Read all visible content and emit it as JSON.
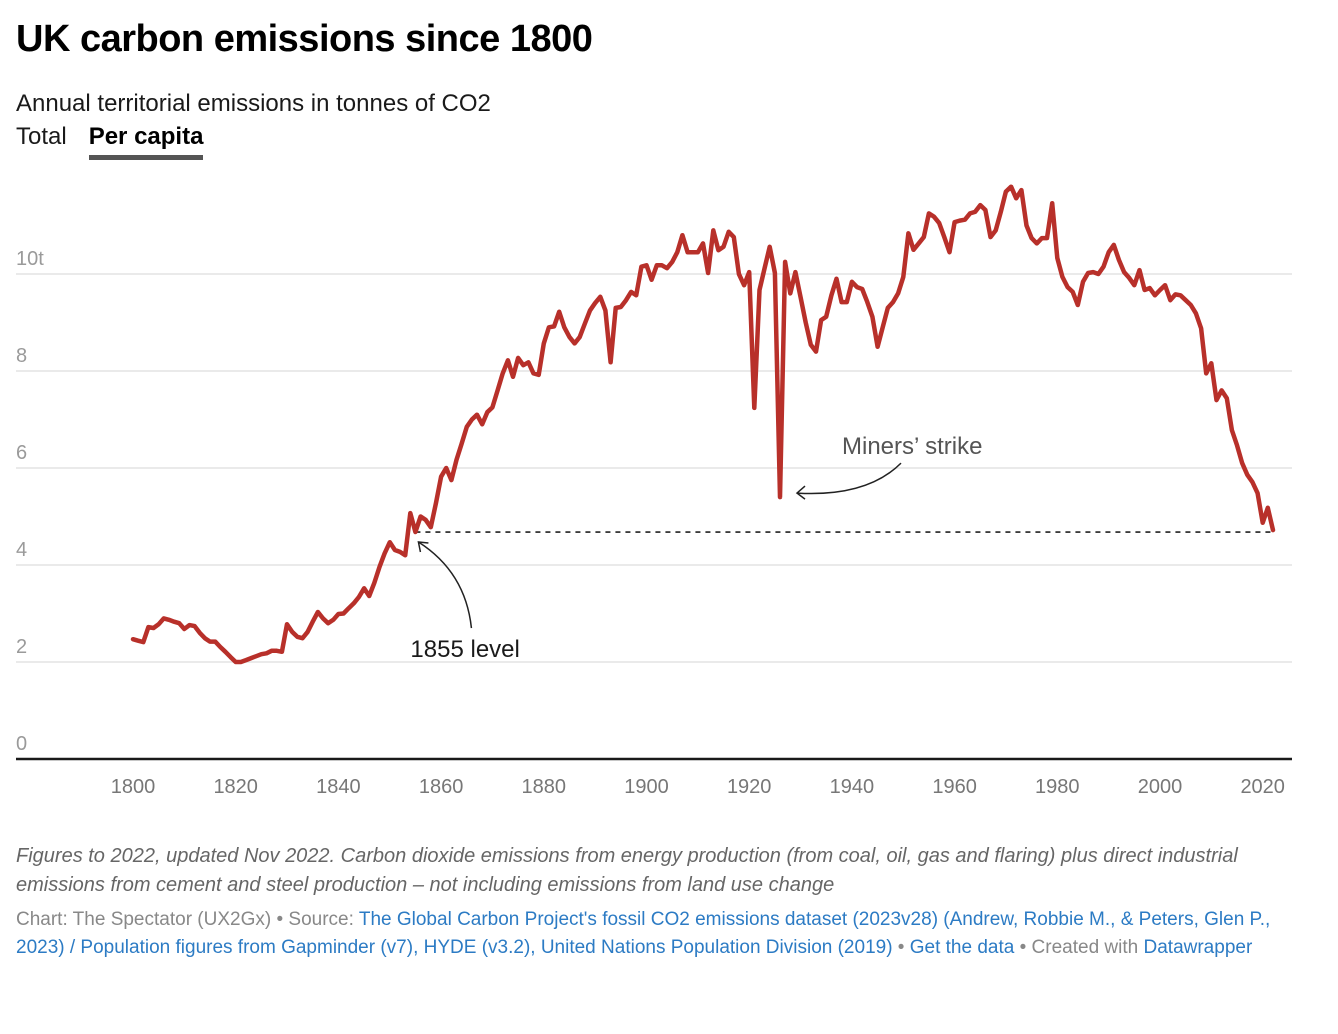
{
  "header": {
    "title": "UK carbon emissions since 1800",
    "subtitle": "Annual territorial emissions in tonnes of CO2",
    "tabs": [
      {
        "label": "Total",
        "active": false
      },
      {
        "label": "Per capita",
        "active": true
      }
    ]
  },
  "chart_data": {
    "type": "line",
    "title": "UK carbon emissions since 1800",
    "subtitle": "Annual territorial emissions in tonnes of CO2",
    "xlabel": "",
    "ylabel": "",
    "unit_suffix": "t",
    "xlim": [
      1793,
      2025
    ],
    "ylim": [
      0,
      12
    ],
    "x_ticks": [
      1800,
      1820,
      1840,
      1860,
      1880,
      1900,
      1920,
      1940,
      1960,
      1980,
      2000,
      2020
    ],
    "y_ticks": [
      0,
      2,
      4,
      6,
      8,
      10
    ],
    "y_tick_labels": [
      "0",
      "2",
      "4",
      "6",
      "8",
      "10t"
    ],
    "grid": true,
    "line_color": "#b8302a",
    "series": [
      {
        "name": "Per capita",
        "x_start": 1800,
        "values": [
          2.47,
          2.44,
          2.41,
          2.72,
          2.7,
          2.78,
          2.9,
          2.87,
          2.83,
          2.8,
          2.68,
          2.76,
          2.74,
          2.6,
          2.49,
          2.42,
          2.42,
          2.31,
          2.21,
          2.1,
          2.0,
          2.0,
          2.04,
          2.08,
          2.12,
          2.16,
          2.18,
          2.23,
          2.23,
          2.21,
          2.78,
          2.62,
          2.52,
          2.49,
          2.62,
          2.83,
          3.03,
          2.9,
          2.8,
          2.87,
          2.99,
          3.0,
          3.11,
          3.21,
          3.34,
          3.52,
          3.36,
          3.63,
          3.96,
          4.24,
          4.47,
          4.31,
          4.27,
          4.2,
          5.07,
          4.68,
          5.0,
          4.93,
          4.78,
          5.28,
          5.82,
          6.0,
          5.75,
          6.17,
          6.5,
          6.85,
          7.0,
          7.1,
          6.9,
          7.15,
          7.25,
          7.6,
          7.95,
          8.22,
          7.88,
          8.27,
          8.12,
          8.18,
          7.95,
          7.92,
          8.57,
          8.9,
          8.92,
          9.22,
          8.9,
          8.7,
          8.57,
          8.7,
          8.98,
          9.25,
          9.4,
          9.53,
          9.25,
          8.18,
          9.3,
          9.32,
          9.46,
          9.63,
          9.56,
          10.15,
          10.18,
          9.88,
          10.18,
          10.18,
          10.12,
          10.25,
          10.45,
          10.8,
          10.45,
          10.45,
          10.45,
          10.63,
          10.02,
          10.9,
          10.49,
          10.56,
          10.87,
          10.76,
          10.0,
          9.77,
          10.04,
          7.24,
          9.67,
          10.12,
          10.56,
          10.02,
          5.4,
          10.25,
          9.6,
          10.04,
          9.53,
          9.0,
          8.54,
          8.4,
          9.05,
          9.12,
          9.56,
          9.9,
          9.42,
          9.42,
          9.84,
          9.73,
          9.69,
          9.42,
          9.12,
          8.5,
          8.9,
          9.3,
          9.42,
          9.6,
          9.94,
          10.84,
          10.5,
          10.63,
          10.76,
          11.25,
          11.18,
          11.05,
          10.76,
          10.45,
          11.07,
          11.1,
          11.12,
          11.25,
          11.28,
          11.42,
          11.32,
          10.76,
          10.9,
          11.28,
          11.7,
          11.8,
          11.56,
          11.73,
          11.0,
          10.74,
          10.63,
          10.74,
          10.74,
          11.46,
          10.33,
          9.94,
          9.73,
          9.63,
          9.36,
          9.84,
          10.02,
          10.04,
          10.0,
          10.15,
          10.45,
          10.6,
          10.29,
          10.04,
          9.92,
          9.77,
          10.08,
          9.67,
          9.71,
          9.56,
          9.67,
          9.77,
          9.46,
          9.58,
          9.56,
          9.46,
          9.36,
          9.19,
          8.88,
          7.95,
          8.16,
          7.4,
          7.6,
          7.44,
          6.78,
          6.47,
          6.1,
          5.86,
          5.71,
          5.48,
          4.87,
          5.18,
          4.72
        ]
      }
    ],
    "reference_line": {
      "label": "1855 level",
      "value": 4.68,
      "from_year": 1855,
      "to_year": 2022,
      "style": "dashed"
    },
    "annotations": [
      {
        "text": "Miners’ strike",
        "target_year": 1926,
        "target_value": 5.4
      },
      {
        "text": "1855 level",
        "target_year": 1855,
        "target_value": 4.68
      }
    ]
  },
  "footer": {
    "notes": "Figures to 2022, updated Nov 2022. Carbon dioxide emissions from energy production (from coal, oil, gas and flaring) plus direct industrial emissions from cement and steel production – not including emissions from land use change",
    "chart_credit": "Chart: The Spectator (UX2Gx)",
    "separator": " • ",
    "source_prefix": "Source: ",
    "source_link": "The Global Carbon Project's fossil CO2 emissions dataset (2023v28) (Andrew, Robbie M., & Peters, Glen P., 2023) / Population figures from Gapminder (v7), HYDE (v3.2), United Nations Population Division (2019)",
    "get_data_link": "Get the data",
    "created_with_prefix": "Created with ",
    "datawrapper_link": "Datawrapper"
  }
}
